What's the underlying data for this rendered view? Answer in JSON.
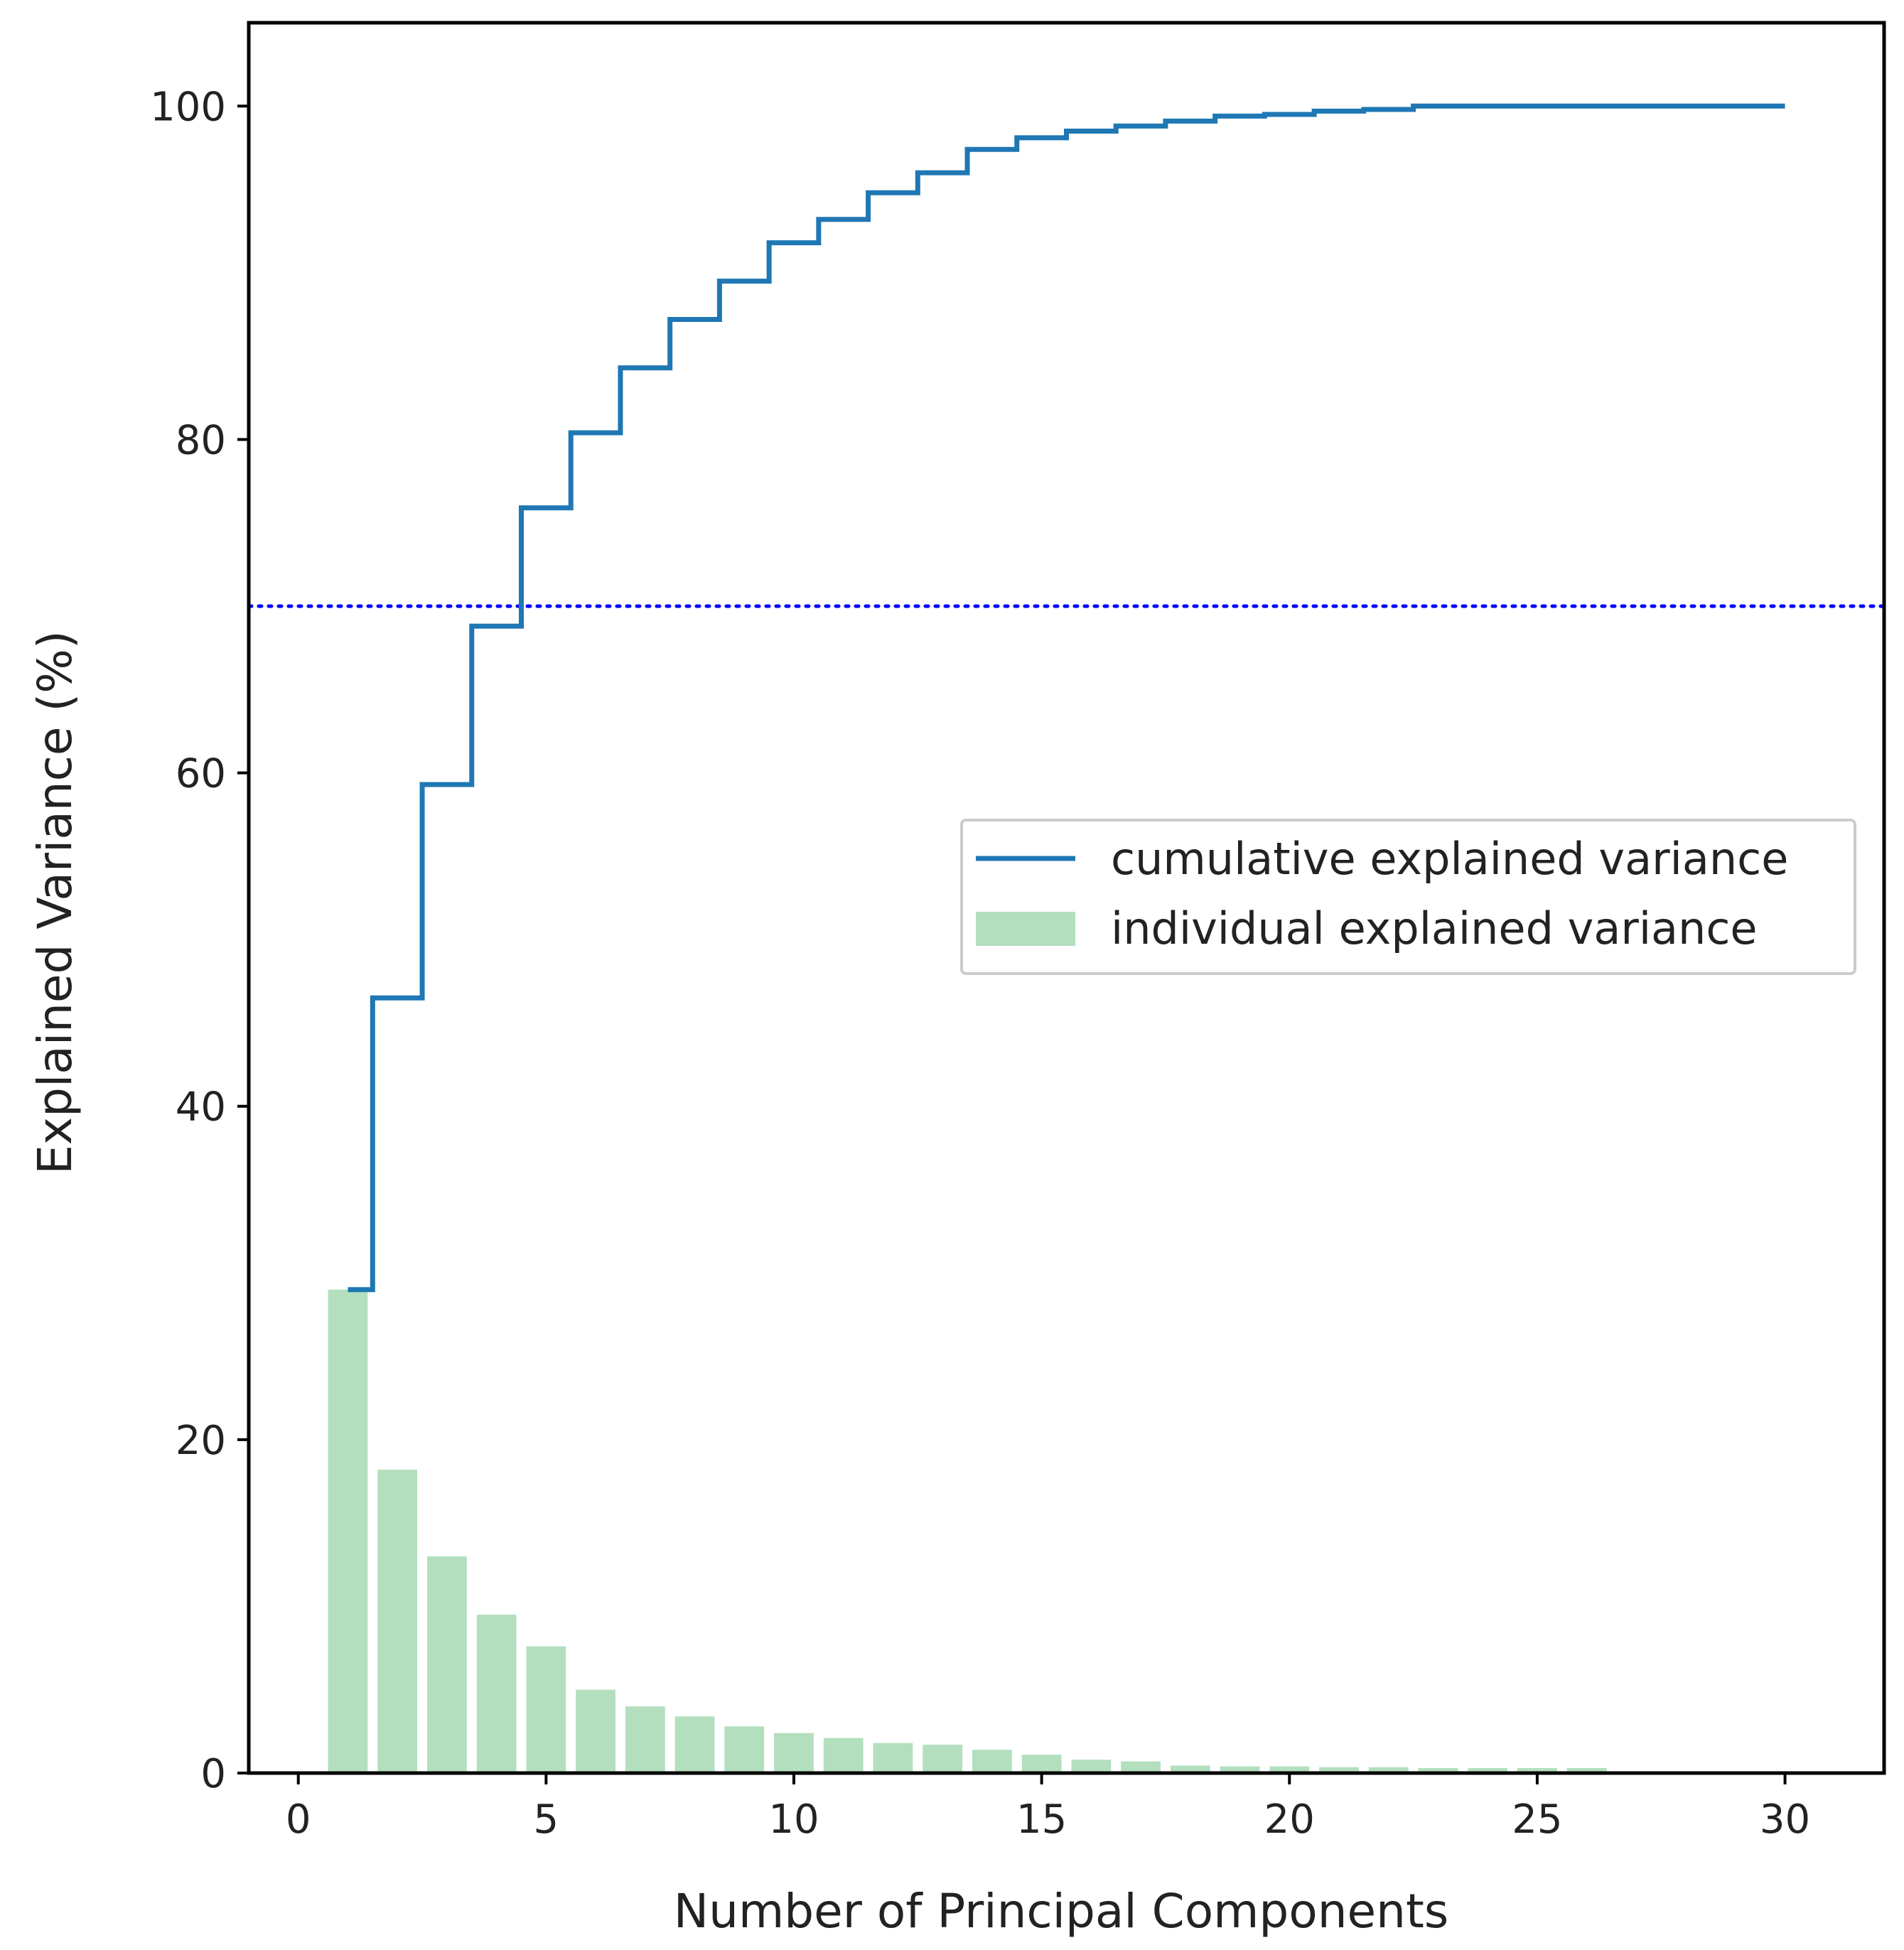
{
  "chart_data": {
    "type": "bar",
    "xlabel": "Number of Principal Components",
    "ylabel": "Explained Variance (%)",
    "xlim": [
      -1,
      32
    ],
    "ylim": [
      0,
      105
    ],
    "xticks": [
      0,
      5,
      10,
      15,
      20,
      25,
      30
    ],
    "yticks": [
      0,
      20,
      40,
      60,
      80,
      100
    ],
    "grid": false,
    "legend_position": "center-right",
    "series": [
      {
        "name": "individual explained variance",
        "kind": "bar",
        "color": "#b3dfbe",
        "x": [
          1,
          2,
          3,
          4,
          5,
          6,
          7,
          8,
          9,
          10,
          11,
          12,
          13,
          14,
          15,
          16,
          17,
          18,
          19,
          20,
          21,
          22,
          23,
          24,
          25,
          26,
          27,
          28,
          29,
          30
        ],
        "values": [
          29.0,
          18.2,
          13.0,
          9.5,
          7.6,
          5.0,
          4.0,
          3.4,
          2.8,
          2.4,
          2.1,
          1.8,
          1.7,
          1.4,
          1.1,
          0.8,
          0.7,
          0.45,
          0.4,
          0.4,
          0.35,
          0.35,
          0.3,
          0.3,
          0.3,
          0.3,
          0.05,
          0.05,
          0.05,
          0.05
        ]
      },
      {
        "name": "cumulative explained variance",
        "kind": "step",
        "color": "#1f77b4",
        "x": [
          1,
          2,
          3,
          4,
          5,
          6,
          7,
          8,
          9,
          10,
          11,
          12,
          13,
          14,
          15,
          16,
          17,
          18,
          19,
          20,
          21,
          22,
          23,
          24,
          25,
          26,
          27,
          28,
          29,
          30
        ],
        "values": [
          29.0,
          46.5,
          59.3,
          68.8,
          75.9,
          80.4,
          84.3,
          87.2,
          89.5,
          91.8,
          93.2,
          94.8,
          96.0,
          97.4,
          98.1,
          98.5,
          98.8,
          99.1,
          99.4,
          99.5,
          99.7,
          99.8,
          100.0,
          100.0,
          100.0,
          100.0,
          100.0,
          100.0,
          100.0,
          100.0
        ]
      }
    ],
    "reference_line": {
      "axis": "y",
      "value": 70,
      "style": "dotted",
      "color": "#0000ff"
    }
  }
}
